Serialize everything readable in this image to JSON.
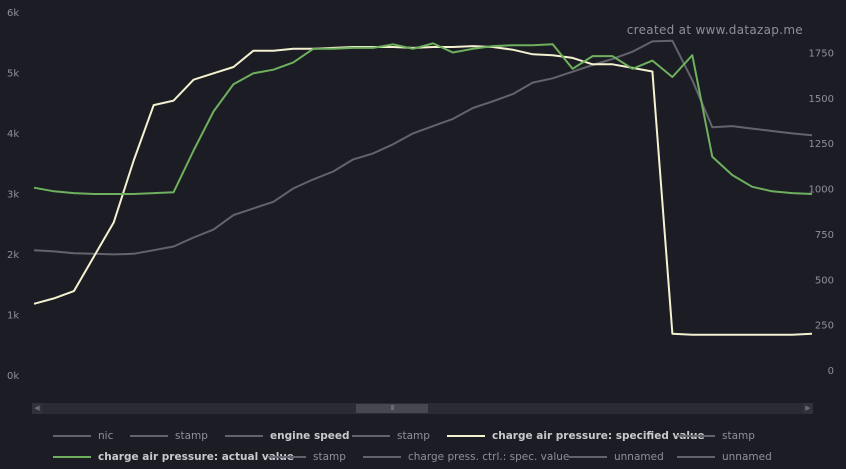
{
  "watermark": "created at www.datazap.me",
  "chart_data": {
    "type": "line",
    "left_axis": {
      "ticks": [
        "0k",
        "1k",
        "2k",
        "3k",
        "4k",
        "5k",
        "6k"
      ],
      "range": [
        0,
        6000
      ]
    },
    "right_axis": {
      "ticks": [
        "0",
        "250",
        "500",
        "750",
        "1000",
        "1250",
        "1500",
        "1750"
      ],
      "range": [
        0,
        2000
      ]
    },
    "grid": false,
    "x": [
      0,
      1,
      2,
      3,
      4,
      5,
      6,
      7,
      8,
      9,
      10,
      11,
      12,
      13,
      14,
      15,
      16,
      17,
      18,
      19,
      20,
      21,
      22,
      23,
      24,
      25,
      26,
      27,
      28,
      29,
      30,
      31,
      32,
      33,
      34,
      35,
      36,
      37,
      38,
      39
    ],
    "series": [
      {
        "name": "engine speed",
        "axis": "left",
        "color": "#62636d",
        "values": [
          2080,
          2060,
          2030,
          2020,
          2010,
          2020,
          2080,
          2140,
          2290,
          2420,
          2660,
          2770,
          2880,
          3100,
          3250,
          3380,
          3580,
          3680,
          3830,
          4010,
          4130,
          4250,
          4430,
          4540,
          4660,
          4850,
          4920,
          5030,
          5140,
          5240,
          5360,
          5530,
          5540,
          4890,
          4110,
          4130,
          4090,
          4050,
          4010,
          3980
        ]
      },
      {
        "name": "charge air pressure: specified value",
        "axis": "right",
        "color": "#f3f1cf",
        "values": [
          370,
          400,
          440,
          630,
          820,
          1160,
          1465,
          1490,
          1605,
          1640,
          1675,
          1765,
          1765,
          1775,
          1775,
          1780,
          1785,
          1785,
          1785,
          1780,
          1785,
          1785,
          1790,
          1785,
          1770,
          1745,
          1740,
          1725,
          1690,
          1690,
          1670,
          1650,
          205,
          200,
          200,
          200,
          200,
          200,
          200,
          205
        ]
      },
      {
        "name": "charge air pressure: actual value",
        "axis": "right",
        "color": "#6fb05e",
        "values": [
          1010,
          990,
          980,
          975,
          975,
          975,
          980,
          985,
          1215,
          1430,
          1580,
          1640,
          1660,
          1700,
          1775,
          1775,
          1780,
          1780,
          1800,
          1775,
          1805,
          1755,
          1775,
          1790,
          1795,
          1795,
          1800,
          1665,
          1735,
          1735,
          1665,
          1710,
          1620,
          1740,
          1180,
          1080,
          1015,
          990,
          980,
          975
        ]
      }
    ]
  },
  "legend": [
    {
      "label": "nic",
      "color": "#62636d",
      "bold": false
    },
    {
      "label": "stamp",
      "color": "#62636d",
      "bold": false
    },
    {
      "label": "engine speed",
      "color": "#62636d",
      "bold": true
    },
    {
      "label": "stamp",
      "color": "#62636d",
      "bold": false
    },
    {
      "label": "charge air pressure: specified value",
      "color": "#f3f1cf",
      "bold": true
    },
    {
      "label": "stamp",
      "color": "#62636d",
      "bold": false
    },
    {
      "label": "charge air pressure: actual value",
      "color": "#6fb05e",
      "bold": true
    },
    {
      "label": "stamp",
      "color": "#62636d",
      "bold": false
    },
    {
      "label": "charge press. ctrl.: spec. value",
      "color": "#62636d",
      "bold": false
    },
    {
      "label": "unnamed",
      "color": "#62636d",
      "bold": false
    },
    {
      "label": "unnamed",
      "color": "#62636d",
      "bold": false
    }
  ],
  "scrollbar": {
    "grip": "III",
    "left_arrow": "◀",
    "right_arrow": "▶"
  }
}
